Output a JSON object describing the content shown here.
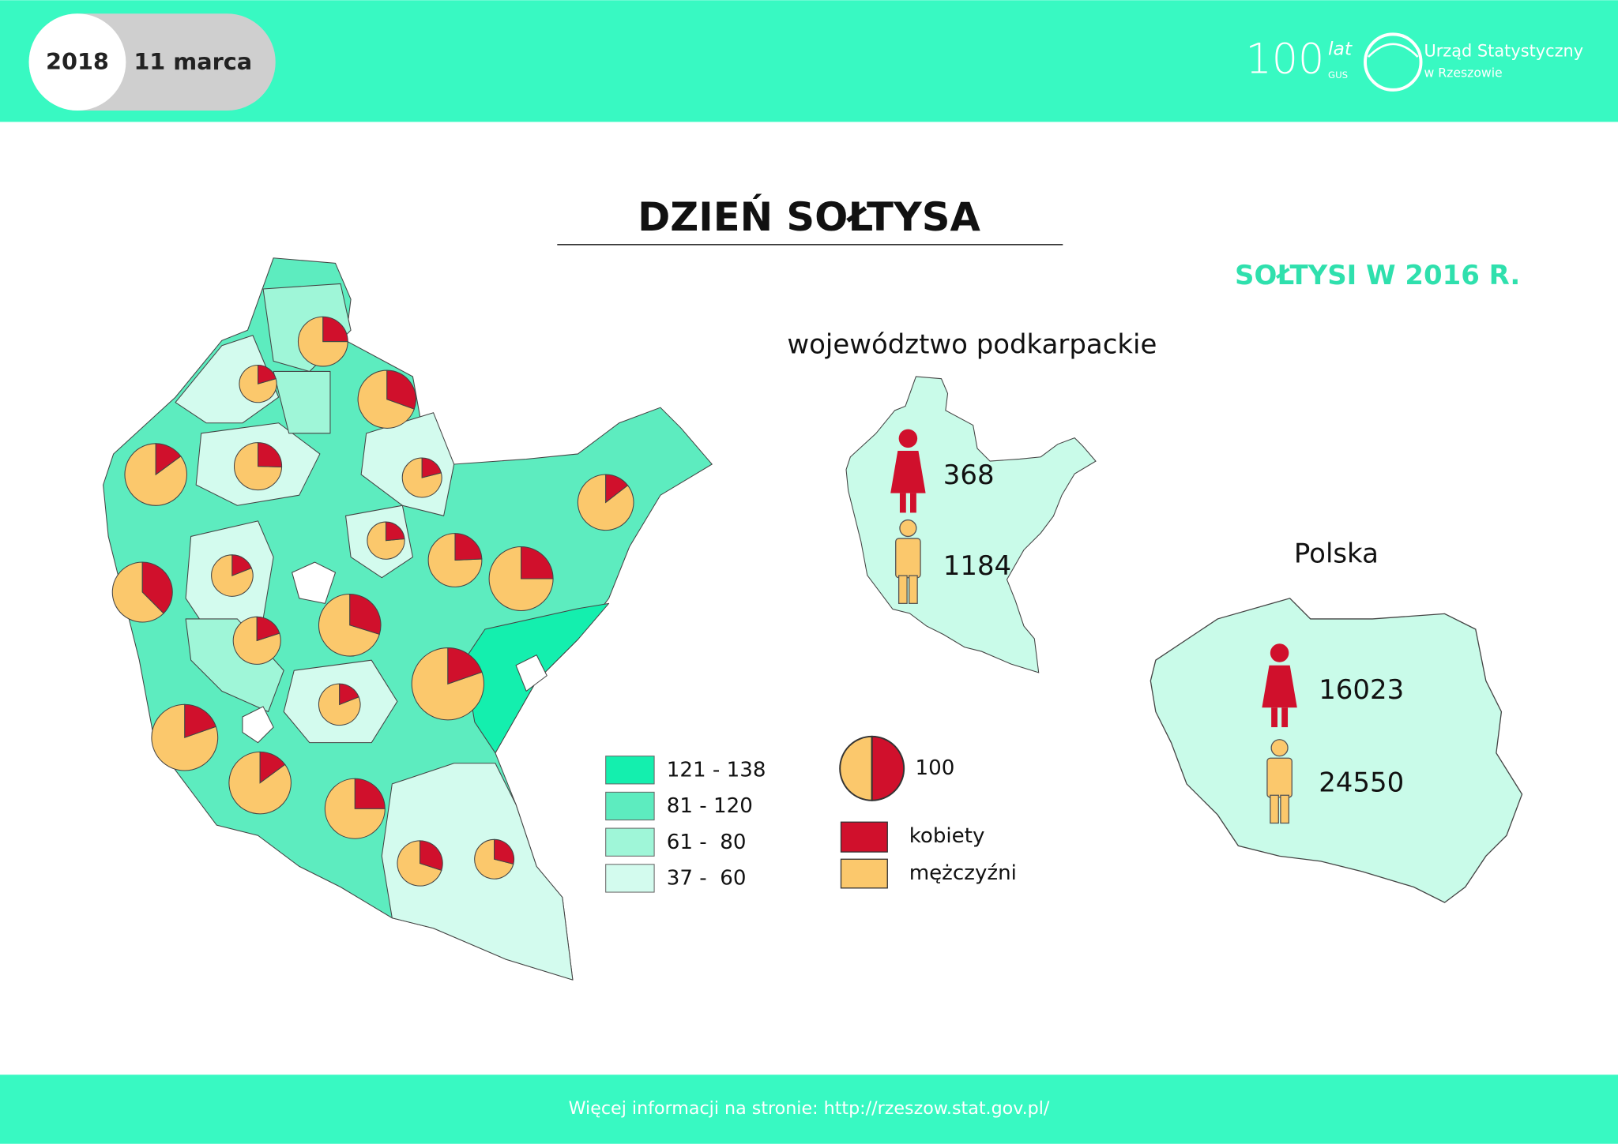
{
  "header": {
    "year": "2018",
    "date": "11 marca",
    "logo_100": "100",
    "logo_lat": "lat",
    "logo_gus": "GUS",
    "office": "Urząd Statystyczny",
    "office_city": "w Rzeszowie"
  },
  "title": "DZIEŃ SOŁTYSA",
  "subtitle": "SOŁTYSI W 2016 R.",
  "region": {
    "name": "województwo podkarpackie",
    "kobiety": 368,
    "mezczyzni": 1184
  },
  "poland": {
    "name": "Polska",
    "kobiety": 16023,
    "mezczyzni": 24550
  },
  "legend": {
    "classes": [
      {
        "label": "121 - 138",
        "color": "#14efae"
      },
      {
        "label": "81 - 120",
        "color": "#5decbf"
      },
      {
        "label": "61 -  80",
        "color": "#9ff6d8"
      },
      {
        "label": "37 -  60",
        "color": "#d3fbee"
      }
    ],
    "pie_reference": 100,
    "kobiety": {
      "label": "kobiety",
      "color": "#d0102c"
    },
    "mezczyzni": {
      "label": "mężczyźni",
      "color": "#fbc86c"
    }
  },
  "county_pies": [
    {
      "kobiety": 15,
      "mezczyzni": 45
    },
    {
      "kobiety": 7,
      "mezczyzni": 27
    },
    {
      "kobiety": 25,
      "mezczyzni": 57
    },
    {
      "kobiety": 14,
      "mezczyzni": 80
    },
    {
      "kobiety": 14,
      "mezczyzni": 41
    },
    {
      "kobiety": 8,
      "mezczyzni": 30
    },
    {
      "kobiety": 11,
      "mezczyzni": 65
    },
    {
      "kobiety": 33,
      "mezczyzni": 55
    },
    {
      "kobiety": 8,
      "mezczyzni": 34
    },
    {
      "kobiety": 8,
      "mezczyzni": 26
    },
    {
      "kobiety": 17,
      "mezczyzni": 53
    },
    {
      "kobiety": 25,
      "mezczyzni": 75
    },
    {
      "kobiety": 11,
      "mezczyzni": 44
    },
    {
      "kobiety": 28,
      "mezczyzni": 66
    },
    {
      "kobiety": 25,
      "mezczyzni": 102
    },
    {
      "kobiety": 8,
      "mezczyzni": 34
    },
    {
      "kobiety": 21,
      "mezczyzni": 86
    },
    {
      "kobiety": 14,
      "mezczyzni": 80
    },
    {
      "kobiety": 22,
      "mezczyzni": 66
    },
    {
      "kobiety": 15,
      "mezczyzni": 35
    },
    {
      "kobiety": 11,
      "mezczyzni": 27
    }
  ],
  "footer": "Więcej informacji na stronie: http://rzeszow.stat.gov.pl/"
}
